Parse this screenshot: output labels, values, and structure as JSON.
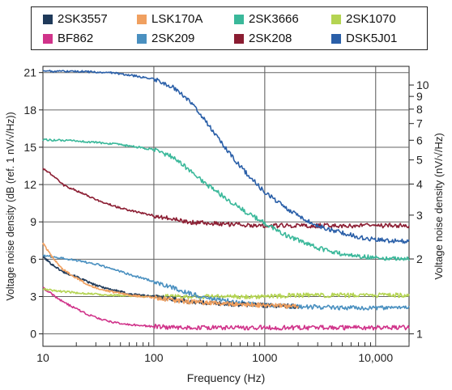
{
  "chart_data": {
    "type": "line",
    "xlabel": "Frequency (Hz)",
    "ylabel": "Voltage noise density (dB (ref. 1 nV/√/Hz))",
    "y2label": "Voltage noise density (nV/√/Hz)",
    "x_scale": "log",
    "xlim": [
      10,
      20000
    ],
    "ylim": [
      -1,
      21.5
    ],
    "grid": true,
    "legend_position": "top",
    "x_ticks": [
      10,
      100,
      1000,
      10000
    ],
    "x_tick_labels": [
      "10",
      "100",
      "1000",
      "10,000"
    ],
    "y_ticks": [
      0,
      3,
      6,
      9,
      12,
      15,
      18,
      21
    ],
    "y_tick_labels": [
      "0",
      "3",
      "6",
      "9",
      "12",
      "15",
      "18",
      "21"
    ],
    "y2_ticks": [
      1,
      2,
      3,
      4,
      5,
      6,
      7,
      8,
      9,
      10
    ],
    "y2_tick_labels": [
      "1",
      "2",
      "3",
      "4",
      "5",
      "6",
      "7",
      "8",
      "9",
      "10"
    ],
    "series": [
      {
        "name": "2SK3557",
        "color": "#1f3a5a",
        "x": [
          10,
          12,
          15,
          20,
          25,
          30,
          40,
          50,
          60,
          80,
          100,
          150,
          200,
          300,
          500,
          1000,
          2000
        ],
        "y": [
          6.2,
          5.6,
          5.0,
          4.6,
          4.2,
          3.9,
          3.6,
          3.4,
          3.2,
          3.1,
          3.0,
          2.8,
          2.6,
          2.5,
          2.4,
          2.3,
          2.2
        ]
      },
      {
        "name": "LSK170A",
        "color": "#f0a060",
        "x": [
          10,
          12,
          15,
          20,
          25,
          30,
          40,
          50,
          60,
          80,
          100,
          150,
          200,
          300,
          500,
          1000,
          2000
        ],
        "y": [
          7.3,
          6.2,
          5.2,
          4.5,
          4.0,
          3.7,
          3.4,
          3.3,
          3.1,
          3.0,
          2.9,
          2.7,
          2.6,
          2.5,
          2.4,
          2.3,
          2.2
        ]
      },
      {
        "name": "2SK3666",
        "color": "#3ab89a",
        "x": [
          10,
          20,
          40,
          60,
          100,
          150,
          200,
          300,
          500,
          700,
          1000,
          1500,
          2000,
          3000,
          5000,
          8000,
          12000,
          20000
        ],
        "y": [
          15.6,
          15.5,
          15.3,
          15.1,
          14.8,
          14.2,
          13.3,
          12.0,
          10.6,
          9.7,
          8.9,
          8.0,
          7.5,
          6.9,
          6.4,
          6.2,
          6.1,
          6.0
        ]
      },
      {
        "name": "2SK1070",
        "color": "#b4d452",
        "x": [
          10,
          15,
          20,
          30,
          40,
          50,
          100,
          200,
          500,
          1000,
          2000,
          5000,
          10000,
          20000
        ],
        "y": [
          3.6,
          3.4,
          3.3,
          3.2,
          3.1,
          3.1,
          3.0,
          3.0,
          3.0,
          3.0,
          3.1,
          3.1,
          3.1,
          3.1
        ]
      },
      {
        "name": "BF862",
        "color": "#d0338a",
        "x": [
          10,
          12,
          15,
          20,
          25,
          30,
          40,
          50,
          70,
          100,
          150,
          200,
          300,
          500,
          1000,
          2000,
          5000,
          10000,
          20000
        ],
        "y": [
          3.7,
          3.2,
          2.6,
          2.0,
          1.6,
          1.3,
          1.0,
          0.8,
          0.7,
          0.6,
          0.5,
          0.5,
          0.5,
          0.5,
          0.5,
          0.5,
          0.5,
          0.5,
          0.5
        ]
      },
      {
        "name": "2SK209",
        "color": "#4a90c0",
        "x": [
          10,
          15,
          20,
          30,
          40,
          50,
          70,
          100,
          150,
          200,
          300,
          500,
          1000,
          2000,
          5000,
          10000,
          20000
        ],
        "y": [
          6.3,
          6.1,
          5.9,
          5.6,
          5.3,
          5.0,
          4.6,
          4.2,
          3.7,
          3.3,
          2.9,
          2.6,
          2.3,
          2.2,
          2.1,
          2.1,
          2.1
        ]
      },
      {
        "name": "2SK208",
        "color": "#8b1d32",
        "x": [
          10,
          12,
          15,
          20,
          30,
          40,
          50,
          70,
          100,
          150,
          200,
          300,
          500,
          1000,
          2000,
          5000,
          10000,
          20000
        ],
        "y": [
          13.3,
          12.8,
          12.0,
          11.5,
          10.8,
          10.4,
          10.1,
          9.8,
          9.5,
          9.2,
          9.0,
          8.9,
          8.8,
          8.7,
          8.7,
          8.7,
          8.7,
          8.7
        ]
      },
      {
        "name": "DSK5J01",
        "color": "#2a5fa8",
        "x": [
          10,
          20,
          40,
          60,
          100,
          150,
          200,
          300,
          500,
          700,
          1000,
          1500,
          2000,
          3000,
          5000,
          8000,
          12000,
          20000
        ],
        "y": [
          21.1,
          21.1,
          21.0,
          20.8,
          20.5,
          19.8,
          18.9,
          17.0,
          14.3,
          12.8,
          11.4,
          10.2,
          9.5,
          8.7,
          8.1,
          7.7,
          7.5,
          7.4
        ]
      }
    ]
  }
}
